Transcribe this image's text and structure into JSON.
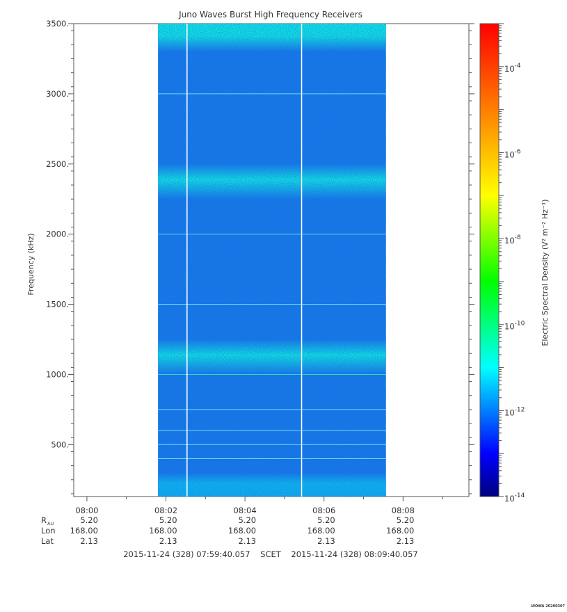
{
  "chart_data": {
    "type": "heatmap",
    "title": "Juno Waves Burst High Frequency Receivers",
    "ylabel": "Frequency (kHz)",
    "x_range": [
      "07:59:40",
      "08:09:40"
    ],
    "ylim": [
      130,
      3500
    ],
    "y_ticks": [
      500,
      1000,
      1500,
      2000,
      2500,
      3000,
      3500
    ],
    "y_tick_labels": [
      "500.",
      "1000.",
      "1500.",
      "2000.",
      "2500.",
      "3000.",
      "3500."
    ],
    "x_ticks": [
      "08:00",
      "08:02",
      "08:04",
      "08:06",
      "08:08"
    ],
    "data_time_range": [
      "08:01:48",
      "08:07:34"
    ],
    "gap_lines": [
      "08:02:32",
      "08:05:26"
    ],
    "bands_kHz": [
      {
        "from": 3300,
        "to": 3500,
        "level": "high"
      },
      {
        "from": 2250,
        "to": 2500,
        "level": "high"
      },
      {
        "from": 1000,
        "to": 1250,
        "level": "high"
      },
      {
        "from": 130,
        "to": 300,
        "level": "medium"
      }
    ],
    "colorbar": {
      "label": "Electric Spectral Density (V² m⁻² Hz⁻¹)",
      "scale": "log",
      "range": [
        1e-14,
        0.001
      ],
      "ticks": [
        {
          "base": "10",
          "exp": "-4",
          "value": 0.0001
        },
        {
          "base": "10",
          "exp": "-6",
          "value": 1e-06
        },
        {
          "base": "10",
          "exp": "-8",
          "value": 1e-08
        },
        {
          "base": "10",
          "exp": "-10",
          "value": 1e-10
        },
        {
          "base": "10",
          "exp": "-12",
          "value": 1e-12
        },
        {
          "base": "10",
          "exp": "-14",
          "value": 1e-14
        }
      ],
      "colors": [
        "#00007f",
        "#0000ff",
        "#007fff",
        "#00ffff",
        "#00ff7f",
        "#00ff00",
        "#7fff00",
        "#ffff00",
        "#ffbf00",
        "#ff7f00",
        "#ff3f00",
        "#ff0000"
      ]
    },
    "ephemeris": {
      "rows": [
        {
          "label": "R",
          "sub": "AU",
          "values": [
            "5.20",
            "5.20",
            "5.20",
            "5.20",
            "5.20"
          ]
        },
        {
          "label": "Lon",
          "sub": "",
          "values": [
            "168.00",
            "168.00",
            "168.00",
            "168.00",
            "168.00"
          ]
        },
        {
          "label": "Lat",
          "sub": "",
          "values": [
            "2.13",
            "2.13",
            "2.13",
            "2.13",
            "2.13"
          ]
        }
      ]
    },
    "time_range_text": "2015-11-24 (328) 07:59:40.057    SCET    2015-11-24 (328) 08:09:40.057",
    "footer": "UIOWA 20200307"
  }
}
